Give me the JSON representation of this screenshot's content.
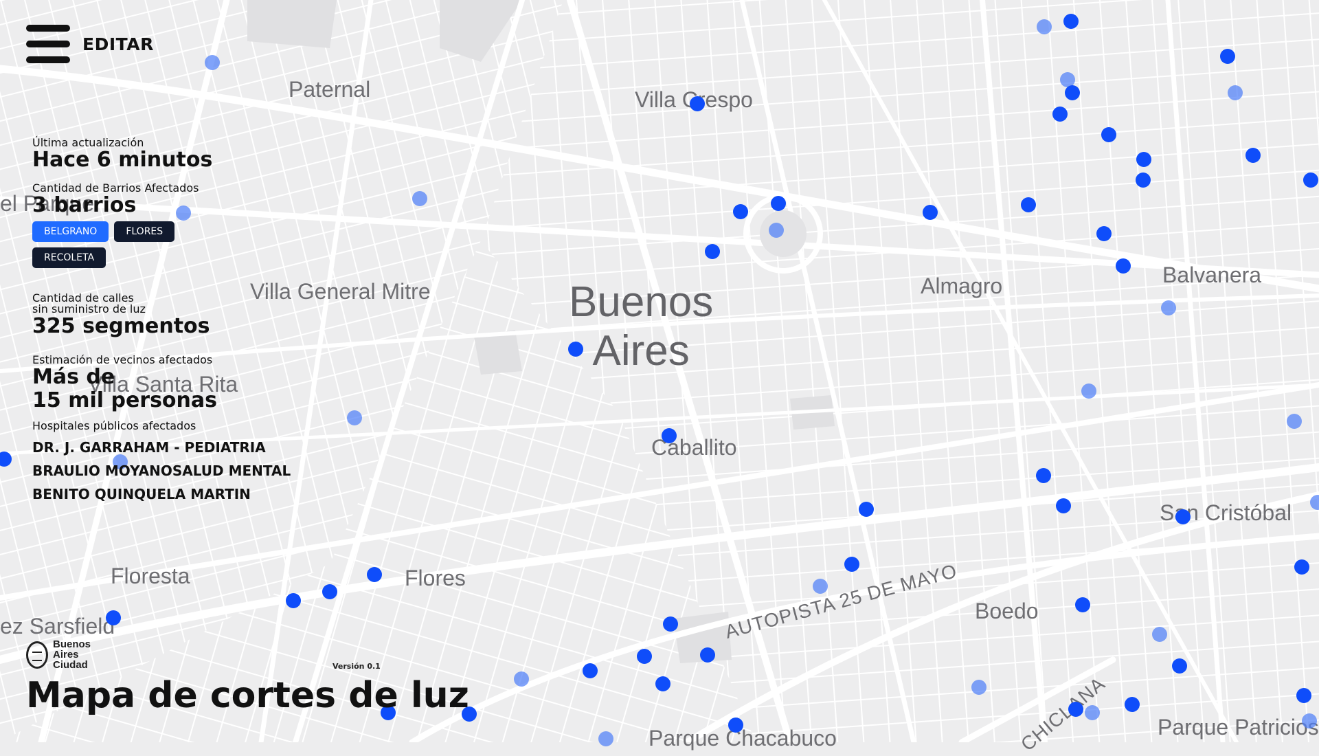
{
  "menu": {
    "label": "EDITAR",
    "icon": "hamburger-menu-icon"
  },
  "map": {
    "city_label": [
      "Buenos",
      "Aires"
    ],
    "neighborhood_labels": [
      "Paternal",
      "Villa Crespo",
      "el Parque",
      "Almagro",
      "Balvanera",
      "Villa General Mitre",
      "Villa Santa Rita",
      "Caballito",
      "San Cristóbal",
      "Floresta",
      "Flores",
      "Boedo",
      "ez Sarsfield",
      "Parque Chacabuco",
      "Parque Patricios"
    ],
    "road_labels": [
      "AUTOPISTA 25 DE MAYO",
      "CHICLANA"
    ],
    "colors": {
      "background": "#ededee",
      "streets": "#ffffff",
      "outage_marker": "#0f4dfa",
      "outage_marker_light": "#4f80f8"
    }
  },
  "panel": {
    "last_update_label": "Última actualización",
    "last_update_value": "Hace 6 minutos",
    "barrios_label": "Cantidad de Barrios Afectados",
    "barrios_value": "3 barrios",
    "barrios_tags": [
      {
        "label": "BELGRANO",
        "active": true
      },
      {
        "label": "FLORES",
        "active": false
      },
      {
        "label": "RECOLETA",
        "active": false
      }
    ],
    "streets_label_line1": "Cantidad de calles",
    "streets_label_line2": "sin suministro de luz",
    "streets_value": "325 segmentos",
    "neighbors_label": "Estimación de vecinos afectados",
    "neighbors_value_line1": "Más de",
    "neighbors_value_line2": "15 mil personas",
    "hospitals_label": "Hospitales públicos afectados",
    "hospitals": [
      "DR. J. GARRAHAM - PEDIATRIA",
      "BRAULIO MOYANOSALUD MENTAL",
      "BENITO QUINQUELA MARTIN"
    ]
  },
  "footer": {
    "logo_lines": [
      "Buenos",
      "Aires",
      "Ciudad"
    ],
    "version": "Versión 0.1",
    "title": "Mapa de cortes de luz"
  }
}
